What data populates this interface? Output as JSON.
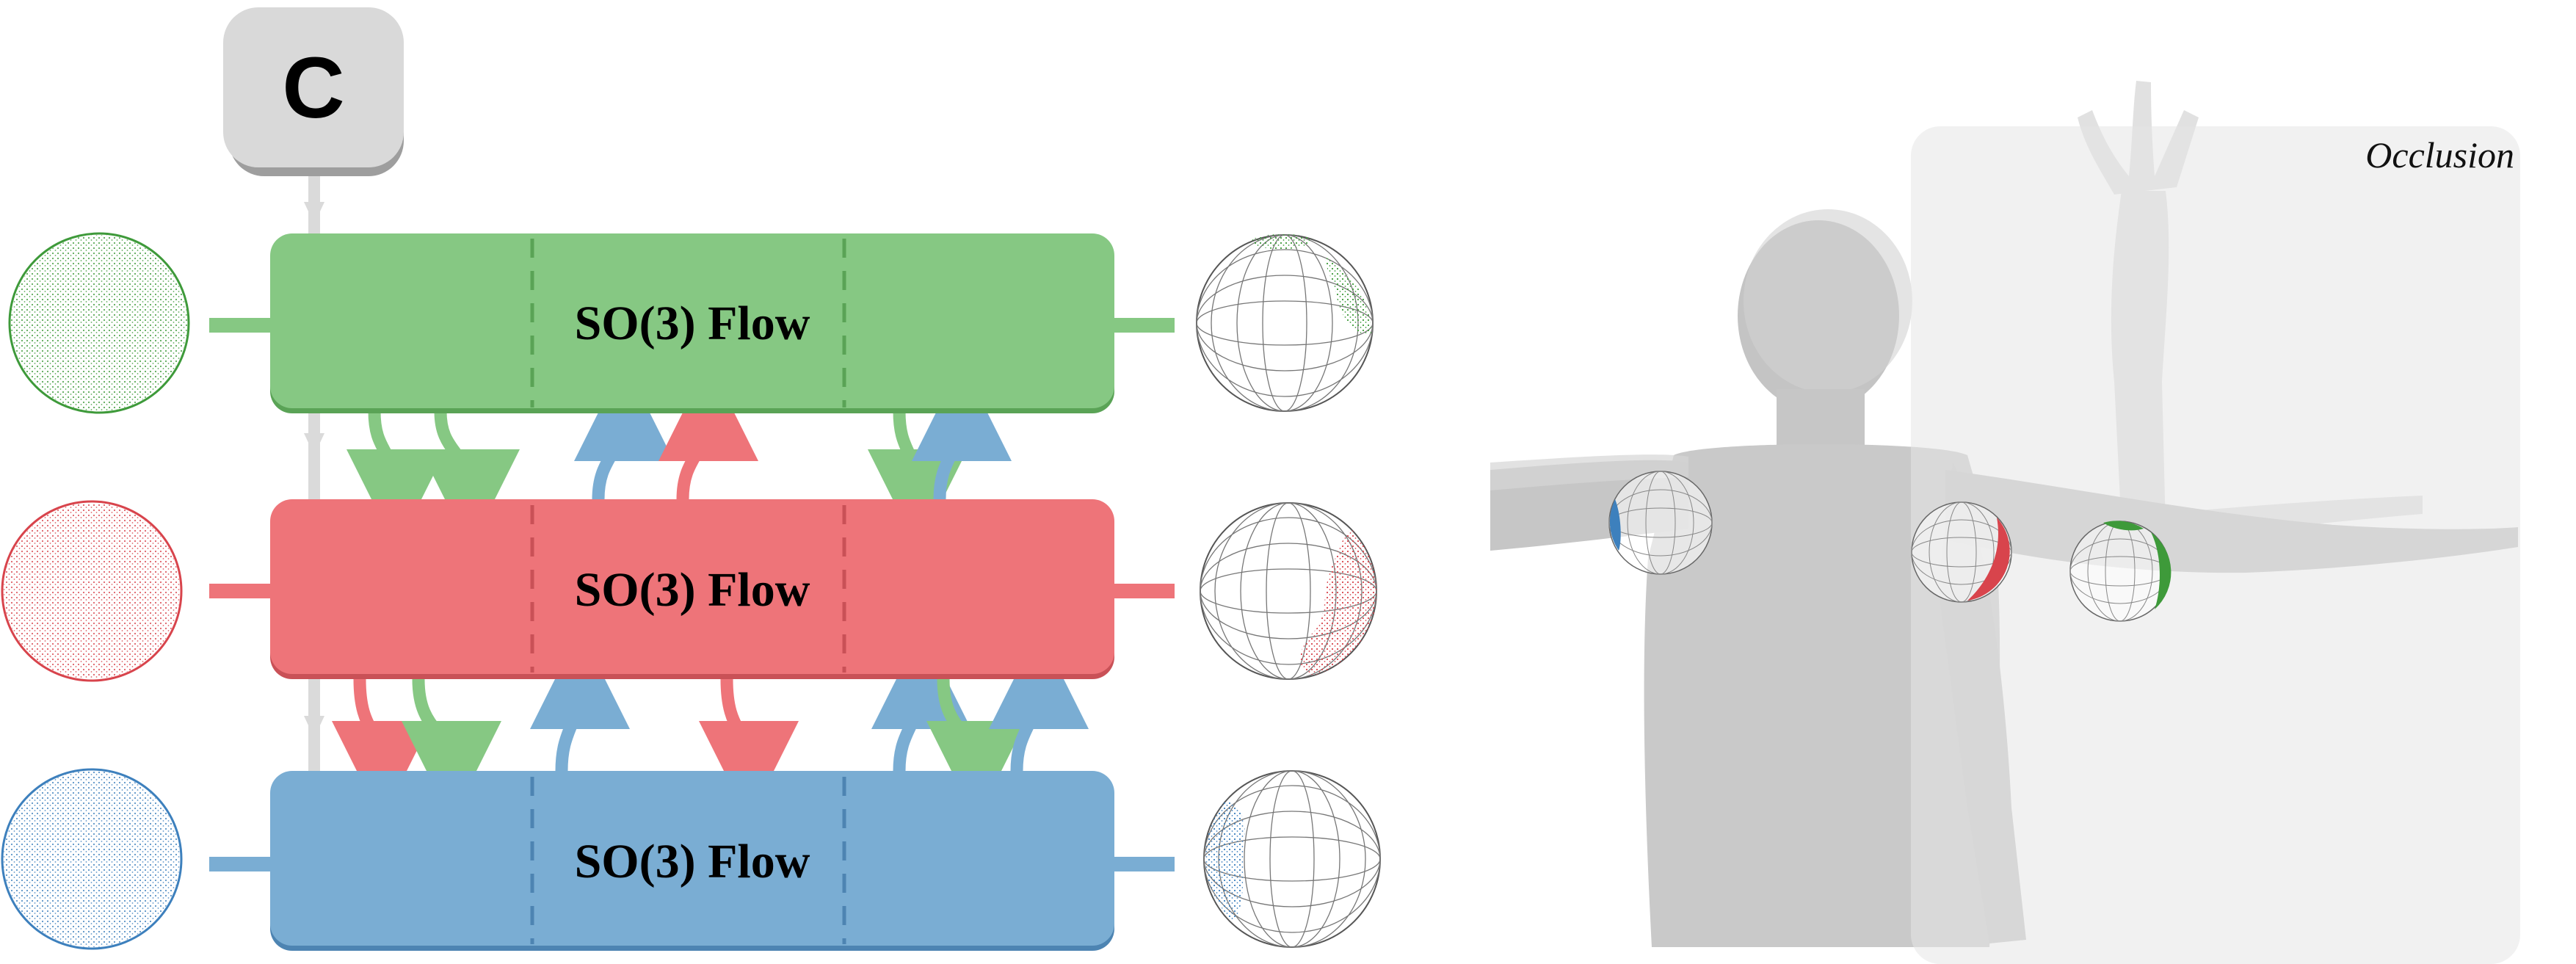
{
  "condition": {
    "label": "C",
    "color": "#d9d9d9"
  },
  "flows": [
    {
      "label": "SO(3) Flow",
      "color": "#86c883",
      "dark": "#5aa356",
      "sphere": "#3e9a3a"
    },
    {
      "label": "SO(3) Flow",
      "color": "#ee7479",
      "dark": "#c95157",
      "sphere": "#d8444c"
    },
    {
      "label": "SO(3) Flow",
      "color": "#7aadd3",
      "dark": "#4d84b2",
      "sphere": "#3d80bd"
    }
  ],
  "occlusion": {
    "label": "Occlusion"
  },
  "body": {
    "color": "#c9c9c9"
  }
}
